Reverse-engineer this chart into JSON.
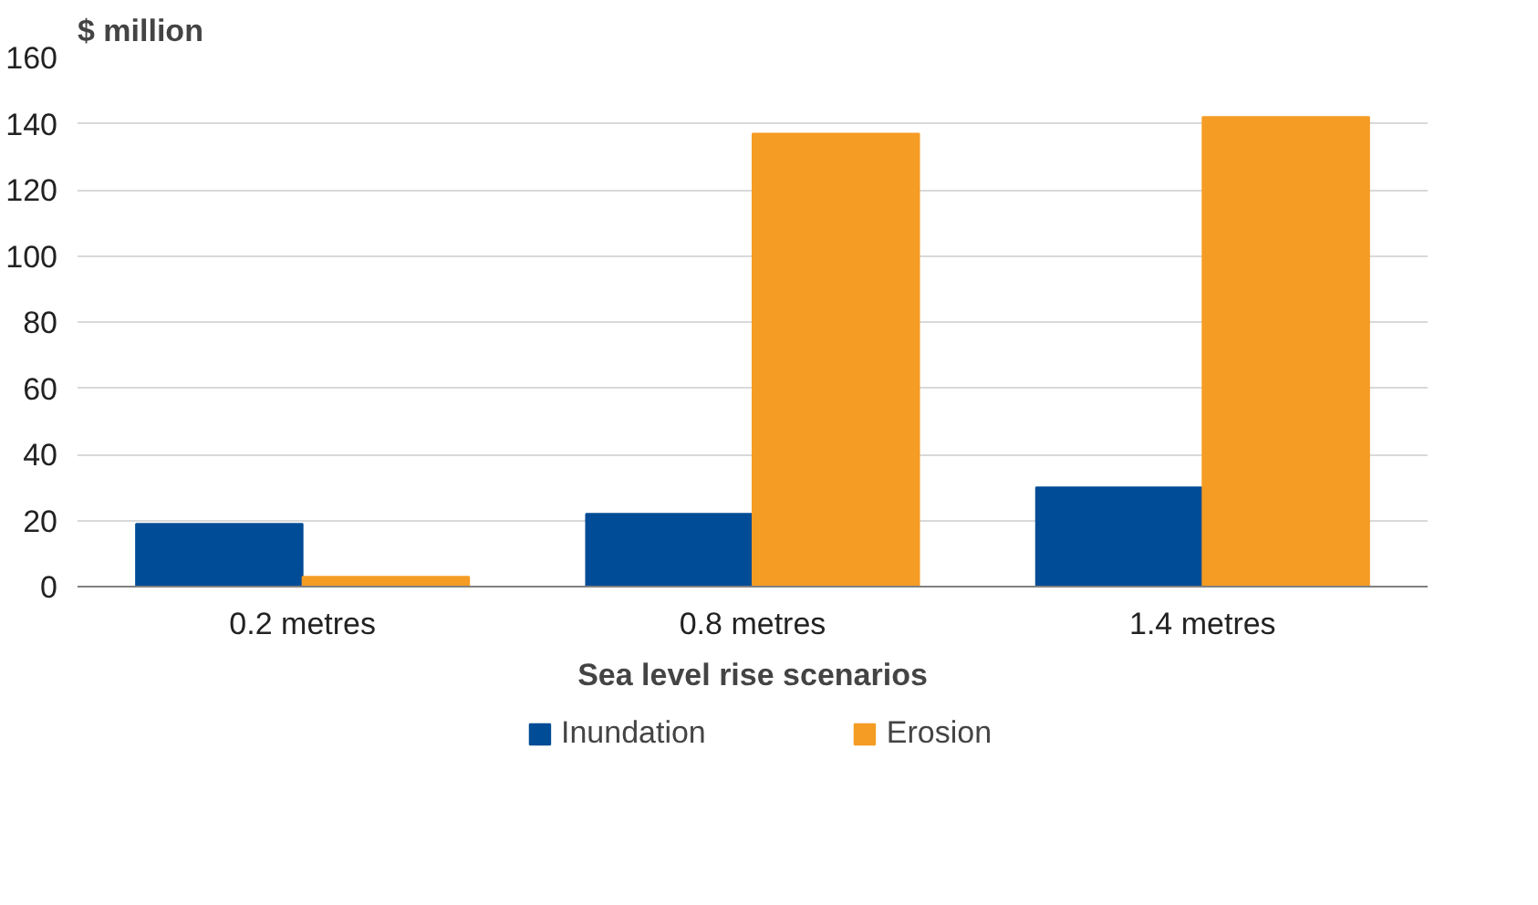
{
  "chart_data": {
    "type": "bar",
    "ylabel": "$ million",
    "xlabel": "Sea level rise scenarios",
    "categories": [
      "0.2 metres",
      "0.8 metres",
      "1.4 metres"
    ],
    "series": [
      {
        "name": "Inundation",
        "color": "#004c97",
        "values": [
          19,
          22,
          30
        ]
      },
      {
        "name": "Erosion",
        "color": "#f59c24",
        "values": [
          3,
          137,
          142
        ]
      }
    ],
    "ylim": [
      0,
      160
    ],
    "yticks": [
      0,
      20,
      40,
      60,
      80,
      100,
      120,
      140,
      160
    ],
    "grid": "y",
    "legend": "bottom"
  }
}
